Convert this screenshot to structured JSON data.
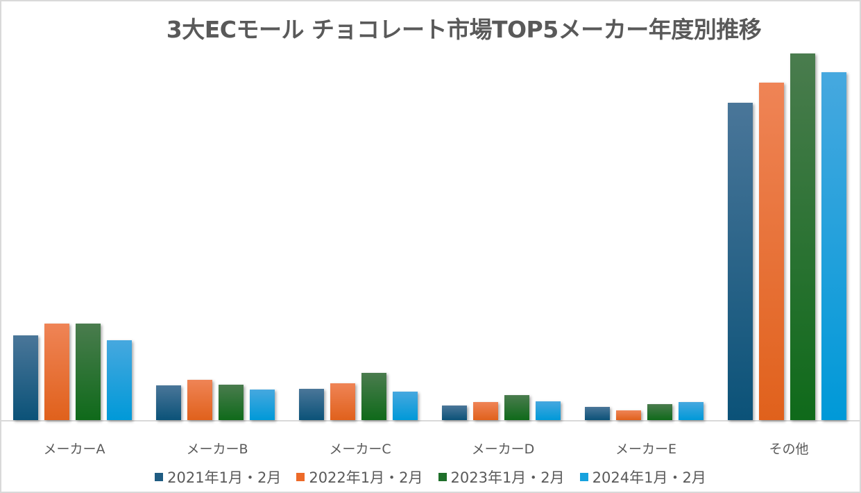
{
  "chart_data": {
    "type": "bar",
    "title": "3大ECモール チョコレート市場TOP5メーカー年度別推移",
    "xlabel": "",
    "ylabel": "",
    "value_unit": "relative (no y-axis shown; estimated from bar pixel heights)",
    "grid": false,
    "legend_position": "bottom",
    "categories": [
      "メーカーA",
      "メーカーB",
      "メーカーC",
      "メーカーD",
      "メーカーE",
      "その他"
    ],
    "series": [
      {
        "name": "2021年1月・2月",
        "color": "#1f5c82",
        "values": [
          122,
          50,
          45,
          21,
          19,
          457
        ]
      },
      {
        "name": "2022年1月・2月",
        "color": "#ed6a28",
        "values": [
          139,
          58,
          53,
          26,
          14,
          486
        ]
      },
      {
        "name": "2023年1月・2月",
        "color": "#1e6f2a",
        "values": [
          139,
          51,
          68,
          36,
          23,
          528
        ]
      },
      {
        "name": "2024年1月・2月",
        "color": "#16a2de",
        "values": [
          115,
          44,
          41,
          27,
          26,
          501
        ]
      }
    ],
    "ylim": [
      0,
      530
    ]
  },
  "chart": {
    "title": "3大ECモール チョコレート市場TOP5メーカー年度別推移"
  },
  "gradients": [
    [
      "#4a7699",
      "#0b5278"
    ],
    [
      "#ef8456",
      "#e0611c"
    ],
    [
      "#4a7c4e",
      "#0f6a1a"
    ],
    [
      "#46a8df",
      "#0099d8"
    ]
  ]
}
